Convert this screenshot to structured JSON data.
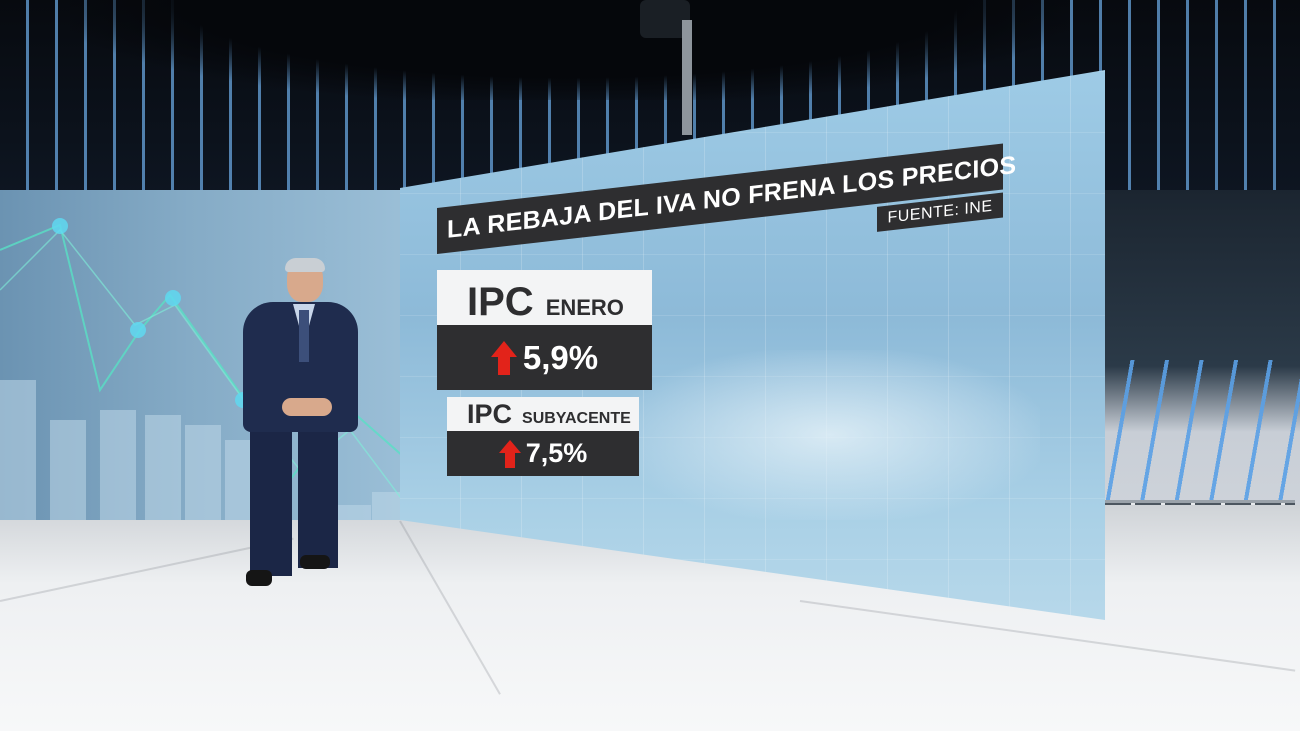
{
  "graphic": {
    "title": "LA REBAJA DEL IVA NO FRENA LOS PRECIOS",
    "source": "FUENTE: INE"
  },
  "indicators": [
    {
      "label": "IPC",
      "sublabel": "ENERO",
      "value": "5,9%",
      "trend": "up"
    },
    {
      "label": "IPC",
      "sublabel": "SUBYACENTE",
      "value": "7,5%",
      "trend": "up"
    }
  ],
  "colors": {
    "panel_dark": "#2e2e30",
    "panel_light": "#f3f4f5",
    "arrow_up": "#e2231a",
    "screen_blue": "#9ecbe6"
  },
  "icons": [
    "arrow-up-icon"
  ]
}
